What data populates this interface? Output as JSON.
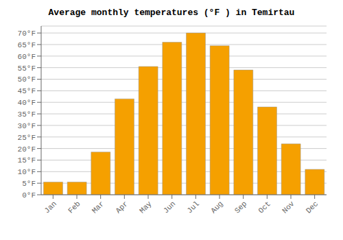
{
  "chart_data": {
    "type": "bar",
    "title": "Average monthly temperatures (°F ) in Temirtau",
    "categories": [
      "Jan",
      "Feb",
      "Mar",
      "Apr",
      "May",
      "Jun",
      "Jul",
      "Aug",
      "Sep",
      "Oct",
      "Nov",
      "Dec"
    ],
    "values": [
      5.5,
      5.5,
      18.5,
      41.5,
      55.5,
      66.0,
      70.0,
      64.5,
      54.0,
      38.0,
      22.0,
      11.0
    ],
    "color": "#F5A000",
    "ylim": [
      0,
      73
    ],
    "yticks": [
      {
        "value": 0,
        "label": "0°F"
      },
      {
        "value": 5,
        "label": "5°F"
      },
      {
        "value": 10,
        "label": "10°F"
      },
      {
        "value": 15,
        "label": "15°F"
      },
      {
        "value": 20,
        "label": "20°F"
      },
      {
        "value": 25,
        "label": "25°F"
      },
      {
        "value": 30,
        "label": "30°F"
      },
      {
        "value": 35,
        "label": "35°F"
      },
      {
        "value": 40,
        "label": "40°F"
      },
      {
        "value": 45,
        "label": "45°F"
      },
      {
        "value": 50,
        "label": "50°F"
      },
      {
        "value": 55,
        "label": "55°F"
      },
      {
        "value": 60,
        "label": "60°F"
      },
      {
        "value": 65,
        "label": "65°F"
      },
      {
        "value": 70,
        "label": "70°F"
      }
    ],
    "grid": true
  }
}
